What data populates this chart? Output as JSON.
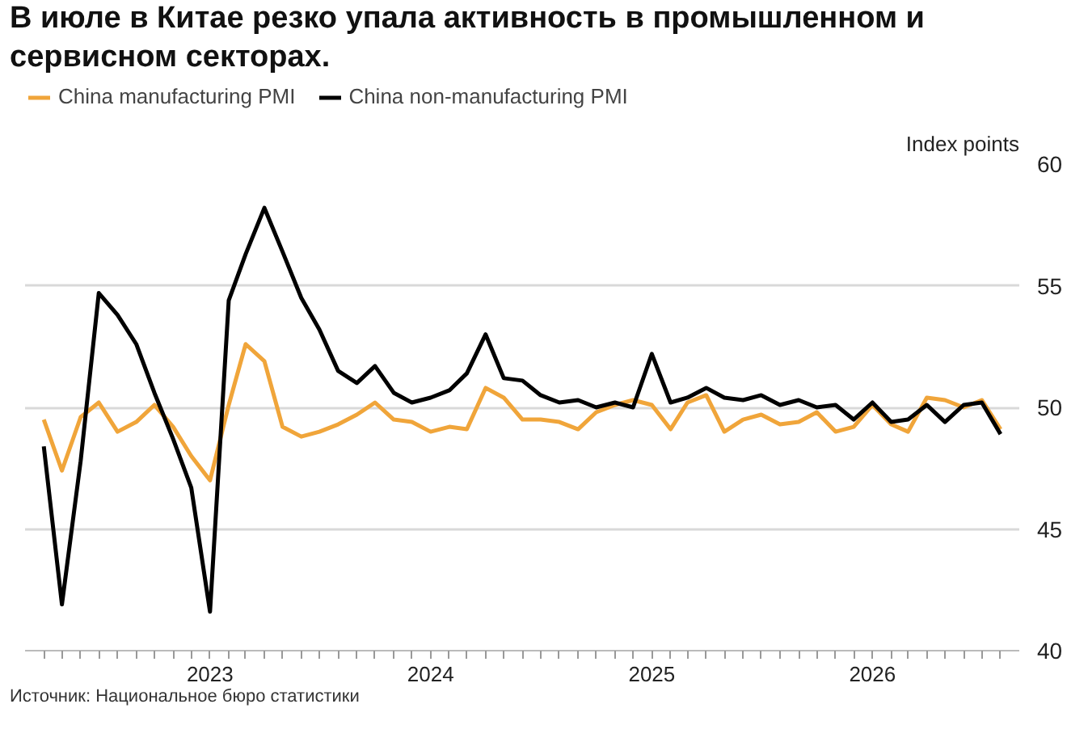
{
  "chart_data": {
    "type": "line",
    "title": "В июле в Китае резко упала активность в промышленном и сервисном секторах.",
    "ylabel": "Index points",
    "annotations": [
      "Источник: Национальное бюро статистики"
    ],
    "x": [
      "2022-04",
      "2022-05",
      "2022-06",
      "2022-07",
      "2022-08",
      "2022-09",
      "2022-10",
      "2022-11",
      "2022-12",
      "2023-01",
      "2023-02",
      "2023-03",
      "2023-04",
      "2023-05",
      "2023-06",
      "2023-07",
      "2023-08",
      "2023-09",
      "2023-10",
      "2023-11",
      "2023-12",
      "2024-01",
      "2024-02",
      "2024-03",
      "2024-04",
      "2024-05",
      "2024-06",
      "2024-07",
      "2024-08",
      "2024-09",
      "2024-10",
      "2024-11",
      "2024-12",
      "2025-01",
      "2025-02",
      "2025-03",
      "2025-04",
      "2025-05",
      "2025-06",
      "2025-07",
      "2025-08",
      "2025-09",
      "2025-10",
      "2025-11",
      "2025-12",
      "2026-01",
      "2026-02",
      "2026-03",
      "2026-04",
      "2026-05",
      "2026-06",
      "2026-07",
      "2026-08"
    ],
    "series": [
      {
        "name": "China manufacturing PMI",
        "color": "#f0a53a",
        "values": [
          49.5,
          47.4,
          49.6,
          50.2,
          49.0,
          49.4,
          50.1,
          49.2,
          48.0,
          47.0,
          50.1,
          52.6,
          51.9,
          49.2,
          48.8,
          49.0,
          49.3,
          49.7,
          50.2,
          49.5,
          49.4,
          49.0,
          49.2,
          49.1,
          50.8,
          50.4,
          49.5,
          49.5,
          49.4,
          49.1,
          49.8,
          50.1,
          50.3,
          50.1,
          49.1,
          50.2,
          50.5,
          49.0,
          49.5,
          49.7,
          49.3,
          49.4,
          49.8,
          49.0,
          49.2,
          50.1,
          49.3,
          49.0,
          50.4,
          50.3,
          50.0,
          50.3,
          49.1
        ]
      },
      {
        "name": "China non-manufacturing PMI",
        "color": "#000000",
        "values": [
          48.4,
          41.9,
          47.8,
          54.7,
          53.8,
          52.6,
          50.6,
          48.7,
          46.7,
          41.6,
          54.4,
          56.3,
          58.2,
          56.4,
          54.5,
          53.2,
          51.5,
          51.0,
          51.7,
          50.6,
          50.2,
          50.4,
          50.7,
          51.4,
          53.0,
          51.2,
          51.1,
          50.5,
          50.2,
          50.3,
          50.0,
          50.2,
          50.0,
          52.2,
          50.2,
          50.4,
          50.8,
          50.4,
          50.3,
          50.5,
          50.1,
          50.3,
          50.0,
          50.1,
          49.5,
          50.2,
          49.4,
          49.5,
          50.1,
          49.4,
          50.1,
          50.2,
          48.9
        ]
      }
    ],
    "xlim": [
      "2022-03",
      "2026-09"
    ],
    "xticks": [
      {
        "value": "2022-04",
        "label": null
      },
      {
        "value": "2022-05",
        "label": null
      },
      {
        "value": "2022-06",
        "label": null
      },
      {
        "value": "2022-07",
        "label": null
      },
      {
        "value": "2022-08",
        "label": null
      },
      {
        "value": "2022-09",
        "label": null
      },
      {
        "value": "2022-10",
        "label": null
      },
      {
        "value": "2022-11",
        "label": null
      },
      {
        "value": "2022-12",
        "label": null
      },
      {
        "value": "2023-01",
        "label": "2023"
      },
      {
        "value": "2023-02",
        "label": null
      },
      {
        "value": "2023-03",
        "label": null
      },
      {
        "value": "2023-04",
        "label": null
      },
      {
        "value": "2023-05",
        "label": null
      },
      {
        "value": "2023-06",
        "label": null
      },
      {
        "value": "2023-07",
        "label": null
      },
      {
        "value": "2023-08",
        "label": null
      },
      {
        "value": "2023-09",
        "label": null
      },
      {
        "value": "2023-10",
        "label": null
      },
      {
        "value": "2023-11",
        "label": null
      },
      {
        "value": "2023-12",
        "label": null
      },
      {
        "value": "2024-01",
        "label": "2024"
      },
      {
        "value": "2024-02",
        "label": null
      },
      {
        "value": "2024-03",
        "label": null
      },
      {
        "value": "2024-04",
        "label": null
      },
      {
        "value": "2024-05",
        "label": null
      },
      {
        "value": "2024-06",
        "label": null
      },
      {
        "value": "2024-07",
        "label": null
      },
      {
        "value": "2024-08",
        "label": null
      },
      {
        "value": "2024-09",
        "label": null
      },
      {
        "value": "2024-10",
        "label": null
      },
      {
        "value": "2024-11",
        "label": null
      },
      {
        "value": "2024-12",
        "label": null
      },
      {
        "value": "2025-01",
        "label": "2025"
      },
      {
        "value": "2025-02",
        "label": null
      },
      {
        "value": "2025-03",
        "label": null
      },
      {
        "value": "2025-04",
        "label": null
      },
      {
        "value": "2025-05",
        "label": null
      },
      {
        "value": "2025-06",
        "label": null
      },
      {
        "value": "2025-07",
        "label": null
      },
      {
        "value": "2025-08",
        "label": null
      },
      {
        "value": "2025-09",
        "label": null
      },
      {
        "value": "2025-10",
        "label": null
      },
      {
        "value": "2025-11",
        "label": null
      },
      {
        "value": "2025-12",
        "label": null
      },
      {
        "value": "2026-01",
        "label": "2026"
      },
      {
        "value": "2026-02",
        "label": null
      },
      {
        "value": "2026-03",
        "label": null
      },
      {
        "value": "2026-04",
        "label": null
      },
      {
        "value": "2026-05",
        "label": null
      },
      {
        "value": "2026-06",
        "label": null
      },
      {
        "value": "2026-07",
        "label": null
      },
      {
        "value": "2026-08",
        "label": null
      }
    ],
    "ylim": [
      40,
      60
    ],
    "yticks": [
      40,
      45,
      50,
      55,
      60
    ],
    "grid": "y",
    "legend": "top left",
    "marker": "none",
    "line_style": "solid"
  }
}
